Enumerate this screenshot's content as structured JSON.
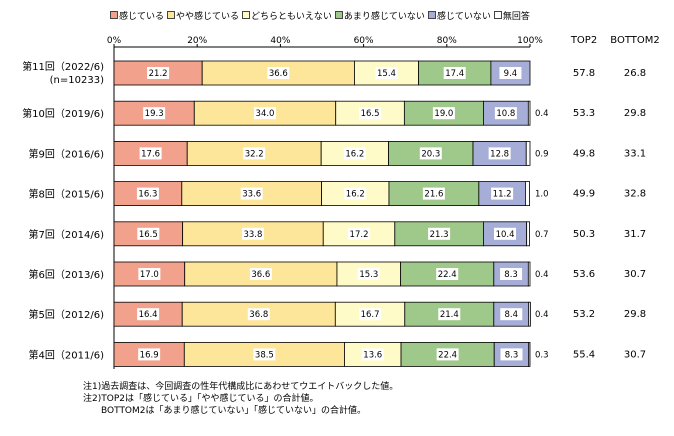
{
  "legend": {
    "items": [
      {
        "label": "感じている",
        "color": "#f1a18c"
      },
      {
        "label": "やや感じている",
        "color": "#fde59a"
      },
      {
        "label": "どちらともいえない",
        "color": "#fffbc9"
      },
      {
        "label": "あまり感じていない",
        "color": "#9fc98a"
      },
      {
        "label": "感じていない",
        "color": "#a6aed8"
      },
      {
        "label": "無回答",
        "color": "#ffffff"
      }
    ]
  },
  "chart_data": {
    "type": "bar",
    "orientation": "horizontal",
    "stacked": true,
    "xlim": [
      0,
      100
    ],
    "x_ticks": [
      "0%",
      "20%",
      "40%",
      "60%",
      "80%",
      "100%"
    ],
    "extra_columns": [
      "TOP2",
      "BOTTOM2"
    ],
    "categories": [
      {
        "label": "第11回（2022/6)",
        "sublabel": "(n=10233)",
        "values": [
          21.2,
          36.6,
          15.4,
          17.4,
          9.4,
          0
        ],
        "no_answer_label": "",
        "top2": "57.8",
        "bottom2": "26.8"
      },
      {
        "label": "第10回（2019/6)",
        "sublabel": "",
        "values": [
          19.3,
          34.0,
          16.5,
          19.0,
          10.8,
          0.4
        ],
        "no_answer_label": "0.4",
        "top2": "53.3",
        "bottom2": "29.8"
      },
      {
        "label": "第9回（2016/6)",
        "sublabel": "",
        "values": [
          17.6,
          32.2,
          16.2,
          20.3,
          12.8,
          0.9
        ],
        "no_answer_label": "0.9",
        "top2": "49.8",
        "bottom2": "33.1"
      },
      {
        "label": "第8回（2015/6)",
        "sublabel": "",
        "values": [
          16.3,
          33.6,
          16.2,
          21.6,
          11.2,
          1.0
        ],
        "no_answer_label": "1.0",
        "top2": "49.9",
        "bottom2": "32.8"
      },
      {
        "label": "第7回（2014/6)",
        "sublabel": "",
        "values": [
          16.5,
          33.8,
          17.2,
          21.3,
          10.4,
          0.7
        ],
        "no_answer_label": "0.7",
        "top2": "50.3",
        "bottom2": "31.7"
      },
      {
        "label": "第6回（2013/6)",
        "sublabel": "",
        "values": [
          17.0,
          36.6,
          15.3,
          22.4,
          8.3,
          0.4
        ],
        "no_answer_label": "0.4",
        "top2": "53.6",
        "bottom2": "30.7"
      },
      {
        "label": "第5回（2012/6)",
        "sublabel": "",
        "values": [
          16.4,
          36.8,
          16.7,
          21.4,
          8.4,
          0.4
        ],
        "no_answer_label": "0.4",
        "top2": "53.2",
        "bottom2": "29.8"
      },
      {
        "label": "第4回（2011/6)",
        "sublabel": "",
        "values": [
          16.9,
          38.5,
          13.6,
          22.4,
          8.3,
          0.3
        ],
        "no_answer_label": "0.3",
        "top2": "55.4",
        "bottom2": "30.7"
      }
    ]
  },
  "notes": [
    "注1)過去調査は、今回調査の性年代構成比にあわせてウエイトバックした値。",
    "注2)TOP2は「感じている」「やや感じている」の合計値。",
    "　　BOTTOM2は「あまり感じていない」「感じていない」の合計値。"
  ]
}
